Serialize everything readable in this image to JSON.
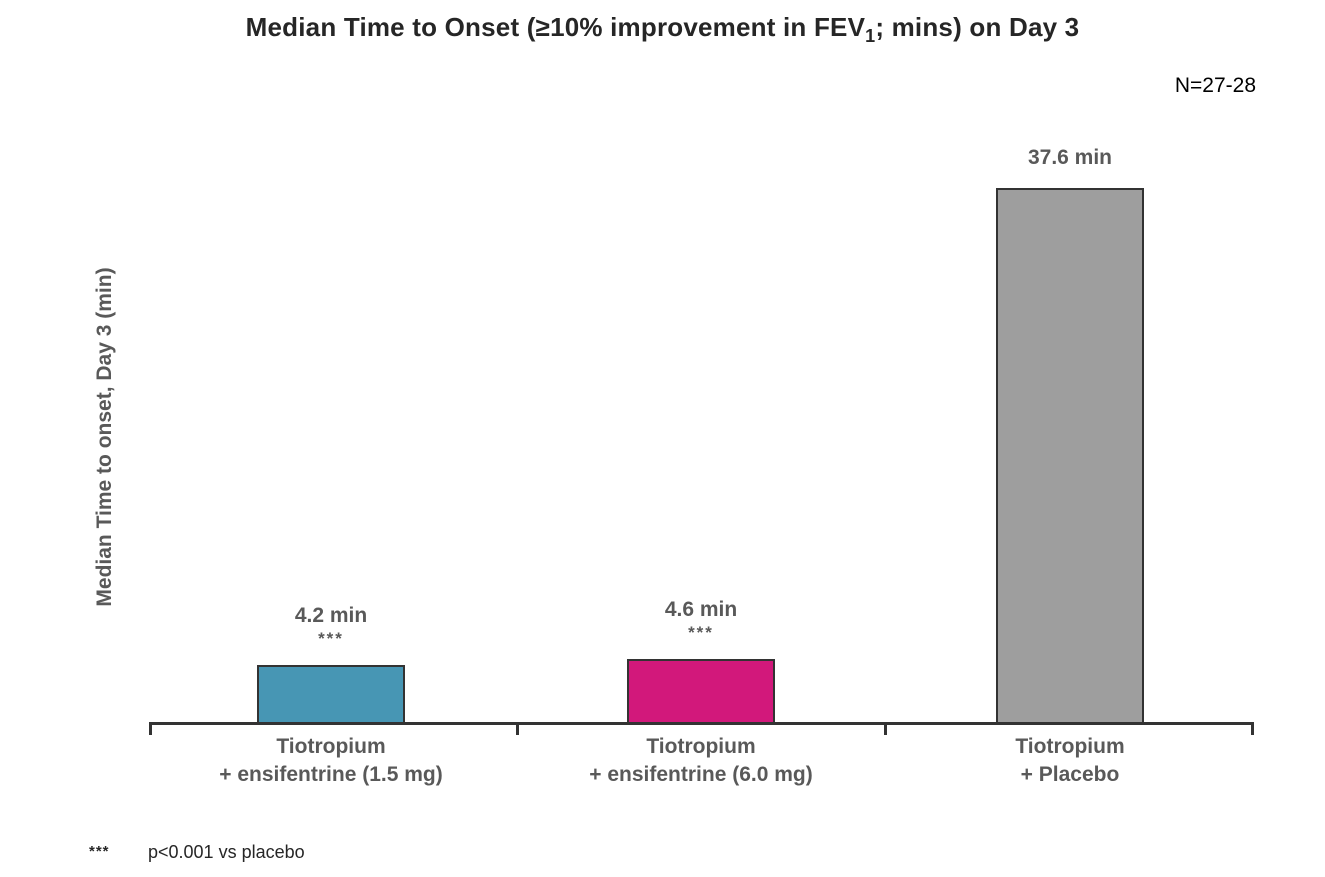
{
  "title": {
    "prefix": "Median Time to Onset (≥10% improvement in FEV",
    "subscript": "1",
    "suffix": "; mins) on Day 3"
  },
  "annotation_n": "N=27-28",
  "footnote": {
    "marker": "***",
    "text": "p<0.001 vs placebo"
  },
  "colors": {
    "bar_border": "#333333",
    "axis": "#333333",
    "label_text": "#595959",
    "title_text": "#262626",
    "background": "#ffffff"
  },
  "chart_data": {
    "type": "bar",
    "title": "Median Time to Onset (≥10% improvement in FEV1; mins) on Day 3",
    "ylabel": "Median Time to onset, Day 3 (min)",
    "xlabel": "",
    "categories": [
      [
        "Tiotropium",
        "+ ensifentrine (1.5 mg)"
      ],
      [
        "Tiotropium",
        "+ ensifentrine (6.0 mg)"
      ],
      [
        "Tiotropium",
        "+ Placebo"
      ]
    ],
    "values": [
      4.2,
      4.6,
      37.6
    ],
    "value_labels": [
      "4.2 min",
      "4.6 min",
      "37.6 min"
    ],
    "significance": [
      "***",
      "***",
      ""
    ],
    "bar_colors": [
      "#4796B4",
      "#D2187B",
      "#9E9E9E"
    ],
    "sample_size": "N=27-28",
    "ylim": [
      0,
      40
    ],
    "grid": false,
    "legend": false,
    "y_axis_ticks_visible": false
  }
}
